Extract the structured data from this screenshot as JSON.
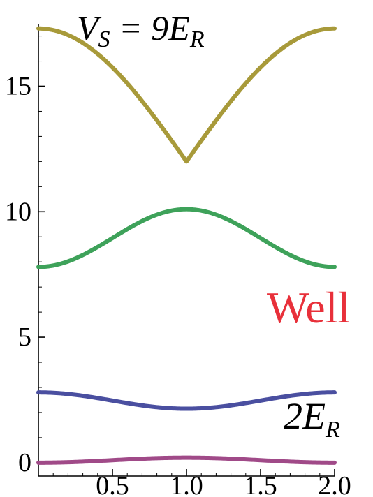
{
  "chart_data": {
    "type": "line",
    "title": {
      "prefix": "V",
      "sub": "S",
      "middle": " = 9E",
      "sub2": "R"
    },
    "xlim": [
      0,
      2
    ],
    "ylim": [
      -1.2,
      17.6
    ],
    "x_ticks": [
      {
        "value": 0.5,
        "label": "0.5"
      },
      {
        "value": 1.0,
        "label": "1.0"
      },
      {
        "value": 1.5,
        "label": "1.5"
      },
      {
        "value": 2.0,
        "label": "2.0"
      }
    ],
    "y_ticks": [
      {
        "value": 0,
        "label": "0"
      },
      {
        "value": 5,
        "label": "5"
      },
      {
        "value": 10,
        "label": "10"
      },
      {
        "value": 15,
        "label": "15"
      }
    ],
    "series": [
      {
        "color": "#a89a3a",
        "shape": "abs-cos",
        "y_at_0": 17.3,
        "y_at_1": 12.0
      },
      {
        "color": "#3ea25a",
        "shape": "cos2",
        "y_at_0": 7.8,
        "y_at_1": 10.1
      },
      {
        "color": "#4a4fa0",
        "shape": "cos2",
        "y_at_0": 2.8,
        "y_at_1": 2.15
      },
      {
        "color": "#a04a88",
        "shape": "cos2",
        "y_at_0": 0.0,
        "y_at_1": 0.2
      }
    ],
    "annotations": {
      "well": {
        "text": "Well",
        "color": "#e8303a"
      },
      "gap": {
        "prefix": "2E",
        "sub": "R"
      }
    }
  }
}
